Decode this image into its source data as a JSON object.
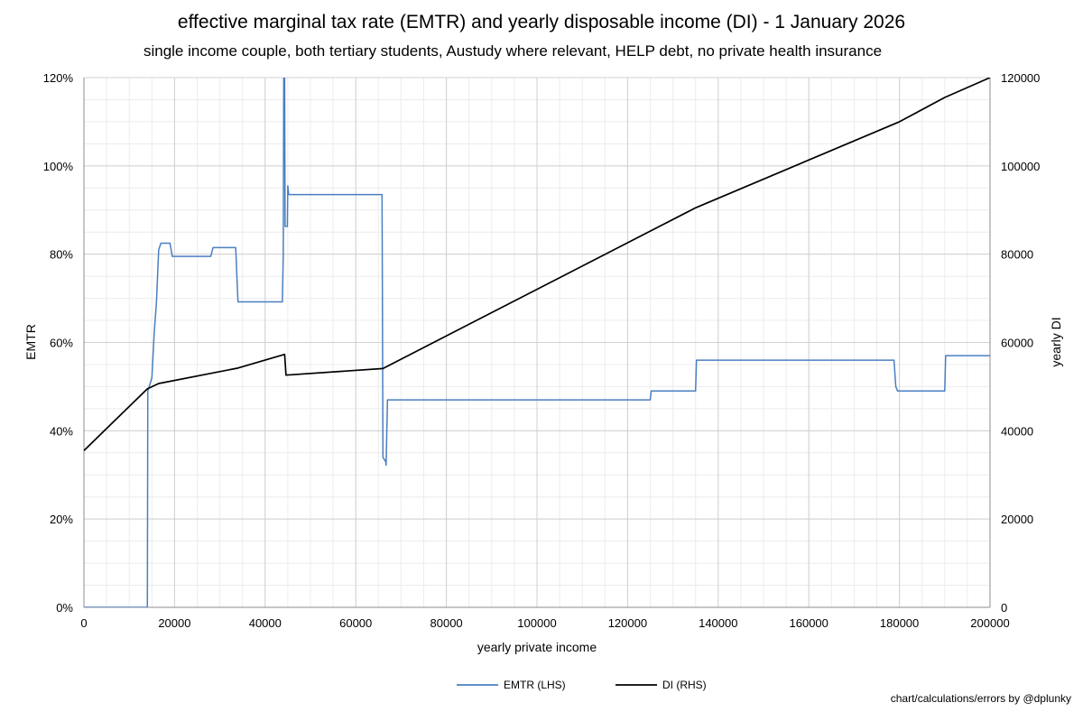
{
  "chart_data": {
    "type": "line",
    "title": "effective marginal tax rate (EMTR) and yearly disposable income (DI) - 1 January 2026",
    "subtitle": "single income couple, both tertiary students, Austudy where relevant, HELP debt, no private health insurance",
    "xlabel": "yearly private income",
    "ylabel_left": "EMTR",
    "ylabel_right": "yearly DI",
    "xlim": [
      0,
      200000
    ],
    "ylim_left": [
      0,
      1.2
    ],
    "ylim_right": [
      0,
      120000
    ],
    "x_ticks": [
      "0",
      "20000",
      "40000",
      "60000",
      "80000",
      "100000",
      "120000",
      "140000",
      "160000",
      "180000",
      "200000"
    ],
    "y_left_ticks": [
      "0%",
      "20%",
      "40%",
      "60%",
      "80%",
      "100%",
      "120%"
    ],
    "y_right_ticks": [
      "0",
      "20000",
      "40000",
      "60000",
      "80000",
      "100000",
      "120000"
    ],
    "grid": true,
    "legend_position": "bottom-center",
    "series": [
      {
        "name": "EMTR (LHS)",
        "axis": "left",
        "color": "#4a7fc1",
        "points": [
          [
            0,
            0
          ],
          [
            14000,
            0
          ],
          [
            14100,
            0.49
          ],
          [
            15000,
            0.52
          ],
          [
            15500,
            0.62
          ],
          [
            16000,
            0.69
          ],
          [
            16500,
            0.81
          ],
          [
            17000,
            0.825
          ],
          [
            19000,
            0.825
          ],
          [
            19500,
            0.795
          ],
          [
            28000,
            0.795
          ],
          [
            28500,
            0.815
          ],
          [
            33500,
            0.815
          ],
          [
            34000,
            0.692
          ],
          [
            43800,
            0.692
          ],
          [
            44000,
            0.8
          ],
          [
            44100,
            1.2
          ],
          [
            44300,
            1.2
          ],
          [
            44400,
            0.863
          ],
          [
            44900,
            0.863
          ],
          [
            45000,
            0.955
          ],
          [
            45200,
            0.935
          ],
          [
            65800,
            0.935
          ],
          [
            66000,
            0.34
          ],
          [
            66600,
            0.33
          ],
          [
            66700,
            0.322
          ],
          [
            67000,
            0.47
          ],
          [
            125000,
            0.47
          ],
          [
            125200,
            0.49
          ],
          [
            135000,
            0.49
          ],
          [
            135200,
            0.56
          ],
          [
            178800,
            0.56
          ],
          [
            179200,
            0.5
          ],
          [
            179600,
            0.49
          ],
          [
            190000,
            0.49
          ],
          [
            190200,
            0.57
          ],
          [
            200000,
            0.57
          ]
        ]
      },
      {
        "name": "DI (RHS)",
        "axis": "right",
        "color": "#000000",
        "points": [
          [
            0,
            35500
          ],
          [
            14000,
            49500
          ],
          [
            16500,
            50700
          ],
          [
            34000,
            54200
          ],
          [
            44300,
            57300
          ],
          [
            44600,
            52600
          ],
          [
            66000,
            54100
          ],
          [
            135000,
            90500
          ],
          [
            180000,
            110000
          ],
          [
            190000,
            115500
          ],
          [
            200000,
            120000
          ]
        ]
      }
    ]
  },
  "credit": "chart/calculations/errors by @dplunky"
}
